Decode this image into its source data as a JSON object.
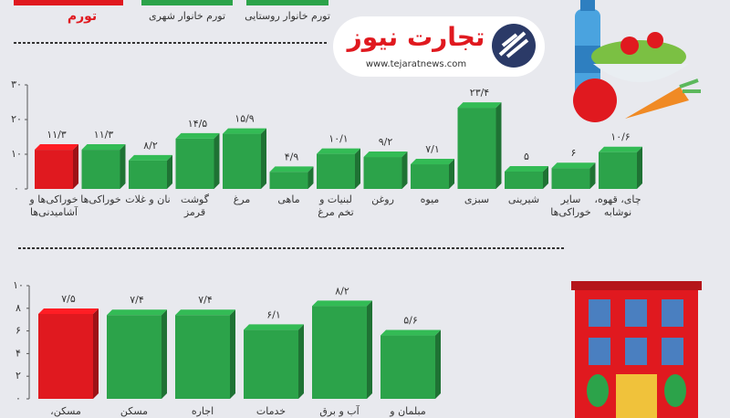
{
  "header": {
    "logo_text": "تجارت نیوز",
    "url": "www.tejaratnews.com"
  },
  "legend": [
    {
      "label": "تورم",
      "color": "#e0191f"
    },
    {
      "label": "تورم خانوار شهری",
      "color": "#2ca34a"
    },
    {
      "label": "تورم خانوار روستایی",
      "color": "#2ca34a"
    }
  ],
  "chart_data": [
    {
      "type": "bar",
      "categories": [
        "خوراکی‌ها و آشامیدنی‌ها",
        "خوراکی‌ها",
        "نان و غلات",
        "گوشت قرمز",
        "مرغ",
        "ماهی",
        "لبنیات و تخم مرغ",
        "روغن",
        "میوه",
        "سبزی",
        "شیرینی",
        "سایر خوراکی‌ها",
        "چای، قهوه، نوشابه"
      ],
      "values": [
        11.3,
        11.3,
        8.2,
        14.5,
        15.9,
        4.9,
        10.1,
        9.2,
        7.1,
        23.4,
        5,
        6,
        10.6
      ],
      "value_labels": [
        "۱۱/۳",
        "۱۱/۳",
        "۸/۲",
        "۱۴/۵",
        "۱۵/۹",
        "۴/۹",
        "۱۰/۱",
        "۹/۲",
        "۷/۱",
        "۲۳/۴",
        "۵",
        "۶",
        "۱۰/۶"
      ],
      "colors": [
        "#e0191f",
        "#2ca34a",
        "#2ca34a",
        "#2ca34a",
        "#2ca34a",
        "#2ca34a",
        "#2ca34a",
        "#2ca34a",
        "#2ca34a",
        "#2ca34a",
        "#2ca34a",
        "#2ca34a",
        "#2ca34a"
      ],
      "ylim": [
        0,
        30
      ],
      "yticks": [
        {
          "value": 0,
          "label": "۰"
        },
        {
          "value": 10,
          "label": "۱۰"
        },
        {
          "value": 20,
          "label": "۲۰"
        },
        {
          "value": 30,
          "label": "۳۰"
        }
      ]
    },
    {
      "type": "bar",
      "categories": [
        "مسکن،",
        "مسکن",
        "اجاره",
        "خدمات",
        "آب و برق",
        "مبلمان و"
      ],
      "values": [
        7.5,
        7.4,
        7.4,
        6.1,
        8.2,
        5.6
      ],
      "value_labels": [
        "۷/۵",
        "۷/۴",
        "۷/۴",
        "۶/۱",
        "۸/۲",
        "۵/۶"
      ],
      "colors": [
        "#e0191f",
        "#2ca34a",
        "#2ca34a",
        "#2ca34a",
        "#2ca34a",
        "#2ca34a"
      ],
      "ylim": [
        0,
        10
      ],
      "yticks": [
        {
          "value": 0,
          "label": "۰"
        },
        {
          "value": 2,
          "label": "۲"
        },
        {
          "value": 4,
          "label": "۴"
        },
        {
          "value": 6,
          "label": "۶"
        },
        {
          "value": 8,
          "label": "۸"
        },
        {
          "value": 10,
          "label": "۱۰"
        }
      ]
    }
  ]
}
